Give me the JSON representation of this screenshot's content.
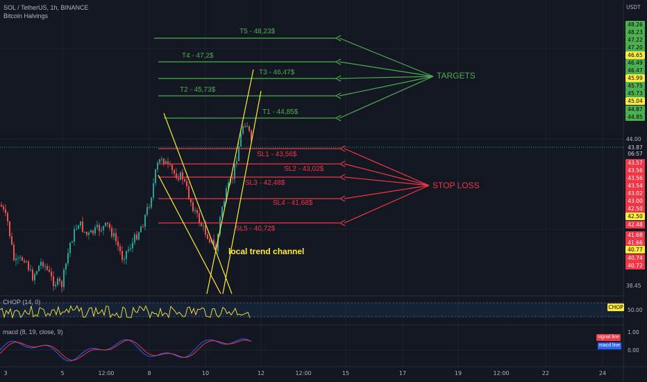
{
  "header": {
    "symbol": "SOL / TetherUS, 1h, BINANCE",
    "indicator": "Bitcoin Halvings"
  },
  "price_axis": {
    "currency": "USDT",
    "ticks": [
      "44.00",
      "38.45"
    ],
    "tags": [
      {
        "text": "48.26",
        "bg": "#4caf50",
        "fg": "#000000"
      },
      {
        "text": "48.23",
        "bg": "#4caf50",
        "fg": "#000000"
      },
      {
        "text": "47.22",
        "bg": "#4caf50",
        "fg": "#000000"
      },
      {
        "text": "47.20",
        "bg": "#4caf50",
        "fg": "#000000"
      },
      {
        "text": "46.65",
        "bg": "#ffeb3b",
        "fg": "#000000"
      },
      {
        "text": "46.49",
        "bg": "#4caf50",
        "fg": "#000000"
      },
      {
        "text": "46.47",
        "bg": "#4caf50",
        "fg": "#000000"
      },
      {
        "text": "45.99",
        "bg": "#ffeb3b",
        "fg": "#000000"
      },
      {
        "text": "45.75",
        "bg": "#4caf50",
        "fg": "#000000"
      },
      {
        "text": "45.73",
        "bg": "#4caf50",
        "fg": "#000000"
      },
      {
        "text": "45.04",
        "bg": "#ffeb3b",
        "fg": "#000000"
      },
      {
        "text": "44.87",
        "bg": "#4caf50",
        "fg": "#000000"
      },
      {
        "text": "44.85",
        "bg": "#4caf50",
        "fg": "#000000"
      },
      {
        "text": "43.87",
        "bg": "#131722",
        "fg": "#d1d4dc"
      },
      {
        "text": "06:57",
        "bg": "#131722",
        "fg": "#d1d4dc"
      },
      {
        "text": "43.57",
        "bg": "#f23645",
        "fg": "#ffffff"
      },
      {
        "text": "43.56",
        "bg": "#f23645",
        "fg": "#ffffff"
      },
      {
        "text": "43.56",
        "bg": "#f23645",
        "fg": "#ffffff"
      },
      {
        "text": "43.54",
        "bg": "#f23645",
        "fg": "#ffffff"
      },
      {
        "text": "43.02",
        "bg": "#f23645",
        "fg": "#ffffff"
      },
      {
        "text": "43.00",
        "bg": "#f23645",
        "fg": "#ffffff"
      },
      {
        "text": "42.50",
        "bg": "#f23645",
        "fg": "#ffffff"
      },
      {
        "text": "42.50",
        "bg": "#ffeb3b",
        "fg": "#000000"
      },
      {
        "text": "42.48",
        "bg": "#f23645",
        "fg": "#ffffff"
      },
      {
        "text": "41.68",
        "bg": "#f23645",
        "fg": "#ffffff"
      },
      {
        "text": "41.66",
        "bg": "#f23645",
        "fg": "#ffffff"
      },
      {
        "text": "40.77",
        "bg": "#ffeb3b",
        "fg": "#000000"
      },
      {
        "text": "40.74",
        "bg": "#f23645",
        "fg": "#ffffff"
      },
      {
        "text": "40.72",
        "bg": "#f23645",
        "fg": "#ffffff"
      }
    ]
  },
  "time_axis": [
    "3",
    "5",
    "12:00",
    "8",
    "10",
    "12",
    "12:00",
    "15",
    "17",
    "19",
    "12:00",
    "22",
    "24"
  ],
  "targets": [
    {
      "label": "T5 - 48,23$"
    },
    {
      "label": "T4 - 47,2$"
    },
    {
      "label": "T3 - 46,47$"
    },
    {
      "label": "T2 - 45,73$"
    },
    {
      "label": "T1 - 44,85$"
    }
  ],
  "stops": [
    {
      "label": "SL1 - 43,56$"
    },
    {
      "label": "SL2 - 43,02$"
    },
    {
      "label": "SL3 - 42,48$"
    },
    {
      "label": "SL4 - 41,68$"
    },
    {
      "label": "SL5 - 40,72$"
    }
  ],
  "annotations": {
    "targets": "TARGETS",
    "stop_loss": "STOP LOSS",
    "channel": "local trend channel"
  },
  "chop": {
    "label": "CHOP (14, 0)",
    "tag": "CHOP",
    "tick": "50.00"
  },
  "macd": {
    "label": "macd (8, 19, close, 9)",
    "ticks": [
      "1.00",
      "0.00"
    ],
    "signal_badge": "signal line",
    "macd_badge": "macd line"
  },
  "colors": {
    "background": "#131722",
    "up": "#26a69a",
    "down": "#ef5350",
    "target": "#4caf50",
    "stop": "#f23645",
    "channel": "#ffeb3b",
    "macd": "#2962ff",
    "signal": "#f23645"
  }
}
